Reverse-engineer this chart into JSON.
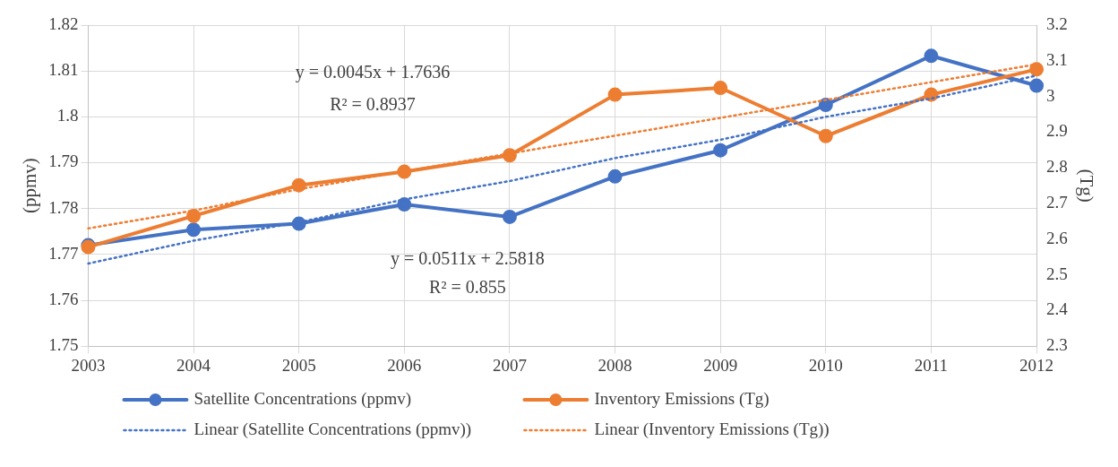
{
  "chart_data": {
    "type": "line",
    "categories": [
      "2003",
      "2004",
      "2005",
      "2006",
      "2007",
      "2008",
      "2009",
      "2010",
      "2011",
      "2012"
    ],
    "ylabel": "(ppmv)",
    "y2label": "(Tg)",
    "ylim": [
      1.75,
      1.82
    ],
    "yticks": [
      1.75,
      1.76,
      1.77,
      1.78,
      1.79,
      1.8,
      1.81,
      1.82
    ],
    "y2lim": [
      2.3,
      3.2
    ],
    "y2ticks": [
      2.3,
      2.4,
      2.5,
      2.6,
      2.7,
      2.8,
      2.9,
      3,
      3.1,
      3.2
    ],
    "grid": true,
    "legend": "bottom",
    "marker": "circle",
    "line_style": "solid",
    "annotations": [
      "y = 0.0045x + 1.7636",
      "R² = 0.8937",
      "y = 0.0511x + 2.5818",
      "R² = 0.855"
    ],
    "series": [
      {
        "name": "Satellite Concentrations (ppmv)",
        "color": "#4472c4",
        "values": [
          1.772,
          1.7754,
          1.7767,
          1.7809,
          1.7782,
          1.787,
          1.7927,
          1.8026,
          1.8133,
          1.8068
        ]
      },
      {
        "name": "Inventory Emissions (Tg)",
        "color": "#ed7d31",
        "axis": "y2",
        "values": [
          2.578,
          2.665,
          2.751,
          2.789,
          2.835,
          3.005,
          3.024,
          2.889,
          3.005,
          3.076
        ]
      },
      {
        "name": "Linear (Satellite Concentrations (ppmv))",
        "color": "#4472c4",
        "marker": "none",
        "line_style": "dotted",
        "values": [
          1.768,
          1.773,
          1.777,
          1.782,
          1.786,
          1.791,
          1.795,
          1.8,
          1.804,
          1.809
        ]
      },
      {
        "name": "Linear (Inventory Emissions (Tg))",
        "color": "#ed7d31",
        "axis": "y2",
        "marker": "none",
        "line_style": "dotted",
        "values": [
          2.63,
          2.68,
          2.74,
          2.79,
          2.84,
          2.89,
          2.94,
          2.99,
          3.04,
          3.09
        ]
      }
    ]
  }
}
